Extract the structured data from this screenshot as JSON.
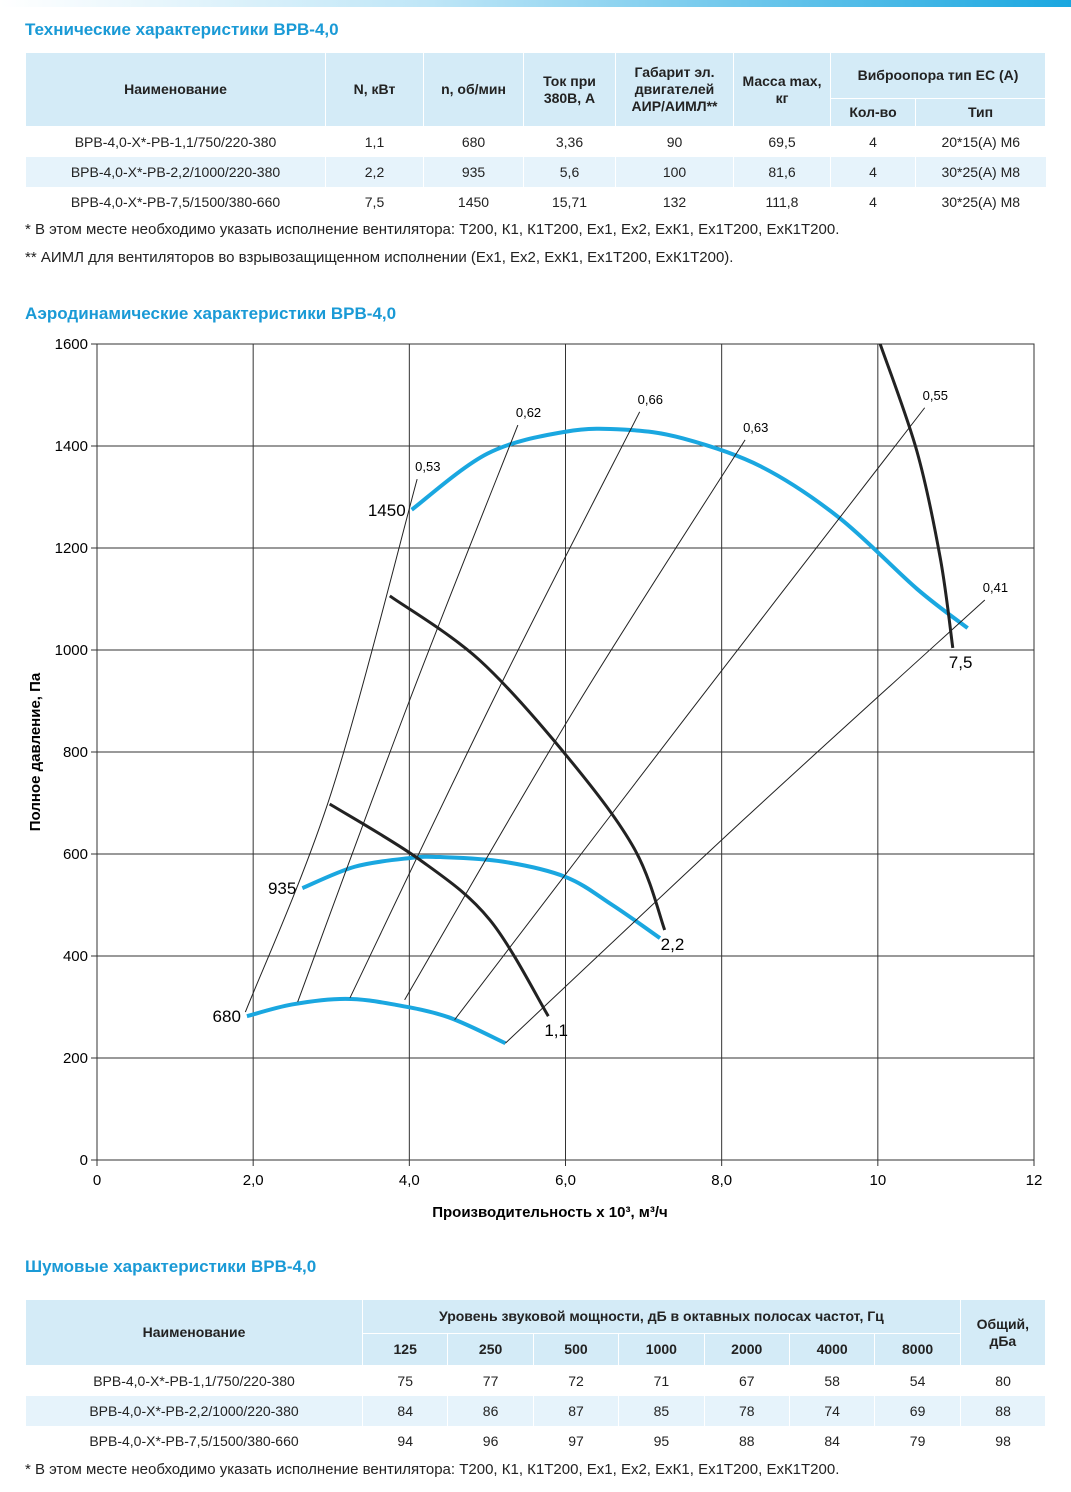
{
  "tech": {
    "title": "Технические характеристики ВРВ-4,0",
    "columns": [
      "Наименование",
      "N, кВт",
      "n, об/мин",
      "Ток при 380В, А",
      "Габарит эл. двигателей АИР/АИМЛ**",
      "Масса max, кг",
      "Виброопора тип ЕС (А)"
    ],
    "subcolumns": [
      "Кол-во",
      "Тип"
    ],
    "rows": [
      [
        "ВРВ-4,0-Х*-РВ-1,1/750/220-380",
        "1,1",
        "680",
        "3,36",
        "90",
        "69,5",
        "4",
        "20*15(А) М6"
      ],
      [
        "ВРВ-4,0-Х*-РВ-2,2/1000/220-380",
        "2,2",
        "935",
        "5,6",
        "100",
        "81,6",
        "4",
        "30*25(А) М8"
      ],
      [
        "ВРВ-4,0-Х*-РВ-7,5/1500/380-660",
        "7,5",
        "1450",
        "15,71",
        "132",
        "111,8",
        "4",
        "30*25(А) М8"
      ]
    ],
    "notes": [
      "* В этом месте необходимо указать исполнение вентилятора: Т200, К1, К1Т200, Ех1, Ех2, ЕхК1, Ех1Т200, ЕхК1Т200.",
      "** АИМЛ для вентиляторов во взрывозащищенном исполнении (Ех1, Ех2, ЕхК1, Ех1Т200, ЕхК1Т200)."
    ]
  },
  "aero_title": "Аэродинамические характеристики ВРВ-4,0",
  "chart_data": {
    "type": "line",
    "x_label": "Производительность х 10³, м³/ч",
    "y_label": "Полное давление, Па",
    "xlim": [
      0,
      12
    ],
    "ylim": [
      0,
      1600
    ],
    "xticks": [
      0,
      {
        "value": 2,
        "label": "2,0"
      },
      {
        "value": 4,
        "label": "4,0"
      },
      {
        "value": 6,
        "label": "6,0"
      },
      {
        "value": 8,
        "label": "8,0"
      },
      10,
      12
    ],
    "yticks": [
      0,
      200,
      400,
      600,
      800,
      1000,
      1200,
      1400,
      1600
    ],
    "grid": true,
    "series": [
      {
        "name": "1450",
        "color": "#1aa7e0",
        "width": 4,
        "x": [
          4.03,
          5.0,
          6.0,
          6.76,
          7.5,
          8.5,
          9.5,
          10.5,
          11.15
        ],
        "values": [
          1275,
          1385,
          1428,
          1432,
          1415,
          1360,
          1260,
          1120,
          1043
        ]
      },
      {
        "name": "935",
        "color": "#1aa7e0",
        "width": 4,
        "x": [
          2.63,
          3.3,
          4.0,
          4.4,
          5.2,
          6.0,
          6.6,
          7.21
        ],
        "values": [
          533,
          575,
          592,
          594,
          585,
          555,
          500,
          435
        ]
      },
      {
        "name": "680",
        "color": "#1aa7e0",
        "width": 4,
        "x": [
          1.92,
          2.5,
          3.18,
          3.8,
          4.5,
          5.23
        ],
        "values": [
          282,
          305,
          316,
          305,
          280,
          229
        ]
      },
      {
        "name": "7,5",
        "color": "#222222",
        "width": 3,
        "x": [
          10.03,
          10.5,
          10.8,
          10.96
        ],
        "values": [
          1600,
          1390,
          1180,
          1004
        ]
      },
      {
        "name": "2,2",
        "color": "#222222",
        "width": 3,
        "x": [
          3.75,
          4.9,
          6.06,
          6.89,
          7.27
        ],
        "values": [
          1106,
          980,
          784,
          608,
          451
        ]
      },
      {
        "name": "1,1",
        "color": "#222222",
        "width": 3,
        "x": [
          2.98,
          4.14,
          5.03,
          5.78
        ],
        "values": [
          698,
          588,
          471,
          282
        ]
      },
      {
        "name": "0,53",
        "color": "#222222",
        "width": 1,
        "x": [
          1.9,
          3.0,
          4.1
        ],
        "values": [
          290,
          720,
          1335
        ]
      },
      {
        "name": "0,62",
        "color": "#222222",
        "width": 1,
        "x": [
          2.57,
          4.0,
          5.39
        ],
        "values": [
          310,
          900,
          1441
        ]
      },
      {
        "name": "0,66",
        "color": "#222222",
        "width": 1,
        "x": [
          3.24,
          5.1,
          6.95
        ],
        "values": [
          318,
          910,
          1467
        ]
      },
      {
        "name": "0,63",
        "color": "#222222",
        "width": 1,
        "x": [
          3.94,
          6.1,
          8.3
        ],
        "values": [
          314,
          880,
          1412
        ]
      },
      {
        "name": "0,55",
        "color": "#222222",
        "width": 1,
        "x": [
          4.58,
          7.6,
          10.6
        ],
        "values": [
          275,
          880,
          1475
        ]
      },
      {
        "name": "0,41",
        "color": "#222222",
        "width": 1,
        "x": [
          5.23,
          8.3,
          11.37
        ],
        "values": [
          229,
          670,
          1098
        ]
      }
    ]
  },
  "noise": {
    "title": "Шумовые характеристики ВРВ-4,0",
    "name_header": "Наименование",
    "band_header": "Уровень звуковой мощности, дБ в октавных полосах частот, Гц",
    "total_header": "Общий, дБа",
    "bands": [
      125,
      250,
      500,
      1000,
      2000,
      4000,
      8000
    ],
    "rows": [
      [
        "ВРВ-4,0-Х*-РВ-1,1/750/220-380",
        75,
        77,
        72,
        71,
        67,
        58,
        54,
        80
      ],
      [
        "ВРВ-4,0-Х*-РВ-2,2/1000/220-380",
        84,
        86,
        87,
        85,
        78,
        74,
        69,
        88
      ],
      [
        "ВРВ-4,0-Х*-РВ-7,5/1500/380-660",
        94,
        96,
        97,
        95,
        88,
        84,
        79,
        98
      ]
    ],
    "note": "* В этом месте необходимо указать исполнение вентилятора: Т200, К1, К1Т200, Ех1, Ех2, ЕхК1, Ех1Т200, ЕхК1Т200."
  }
}
